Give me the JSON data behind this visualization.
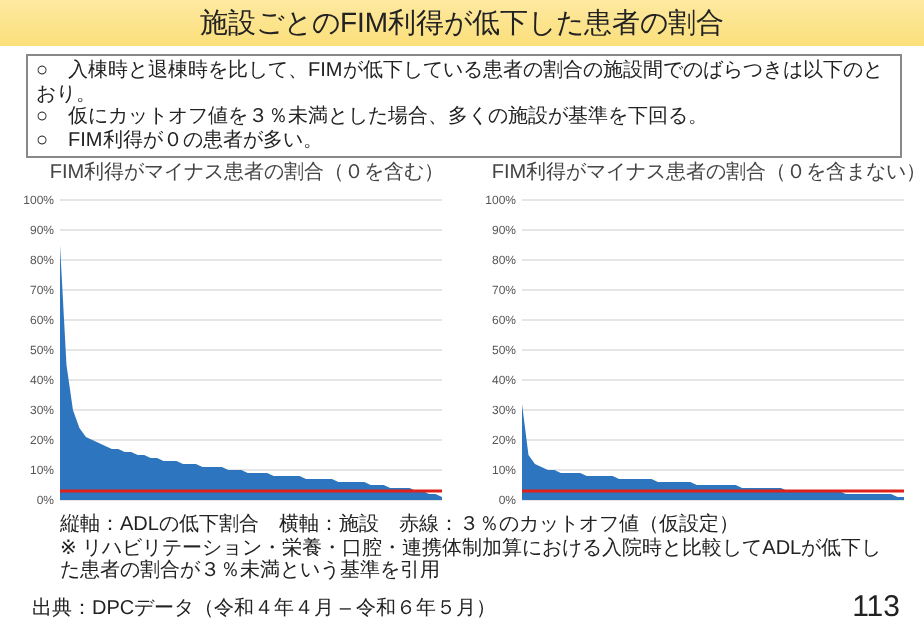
{
  "chart_data": [
    {
      "type": "other",
      "title": "施設ごとのFIM利得が低下した患者の割合",
      "annotations": [
        "○　入棟時と退棟時を比して、FIMが低下している患者の割合の施設間でのばらつきは以下のとおり。",
        "○　仮にカットオフ値を３％未満とした場合、多くの施設が基準を下回る。",
        "○　FIM利得が０の患者が多い。"
      ]
    },
    {
      "type": "area",
      "title": "FIM利得がマイナス患者の割合（０を含む）",
      "color": "#2e75c0",
      "grid": "y",
      "ylim": [
        0,
        100
      ],
      "yticks": [
        {
          "value": 0,
          "label": "0%"
        },
        {
          "value": 10,
          "label": "10%"
        },
        {
          "value": 20,
          "label": "20%"
        },
        {
          "value": 30,
          "label": "30%"
        },
        {
          "value": 40,
          "label": "40%"
        },
        {
          "value": 50,
          "label": "50%"
        },
        {
          "value": 60,
          "label": "60%"
        },
        {
          "value": 70,
          "label": "70%"
        },
        {
          "value": 80,
          "label": "80%"
        },
        {
          "value": 90,
          "label": "90%"
        },
        {
          "value": 100,
          "label": "100%"
        }
      ],
      "categories": [
        null,
        null,
        null,
        null,
        null,
        null,
        null,
        null,
        null,
        null,
        null,
        null,
        null,
        null,
        null,
        null,
        null,
        null,
        null,
        null,
        null,
        null,
        null,
        null,
        null,
        null,
        null,
        null,
        null,
        null,
        null,
        null,
        null,
        null,
        null,
        null,
        null,
        null,
        null,
        null,
        null,
        null,
        null,
        null,
        null,
        null,
        null,
        null,
        null,
        null,
        null,
        null,
        null,
        null,
        null,
        null,
        null,
        null,
        null,
        null
      ],
      "values": [
        85,
        45,
        30,
        24,
        21,
        20,
        19,
        18,
        17,
        17,
        16,
        16,
        15,
        15,
        14,
        14,
        13,
        13,
        13,
        12,
        12,
        12,
        11,
        11,
        11,
        11,
        10,
        10,
        10,
        9,
        9,
        9,
        9,
        8,
        8,
        8,
        8,
        8,
        7,
        7,
        7,
        7,
        7,
        6,
        6,
        6,
        6,
        6,
        5,
        5,
        5,
        4,
        4,
        4,
        4,
        3,
        3,
        2,
        2,
        1
      ],
      "ref_lines": [
        {
          "axis": "y",
          "value": 3,
          "color": "#e0201b"
        }
      ]
    },
    {
      "type": "area",
      "title": "FIM利得がマイナス患者の割合（０を含まない）",
      "color": "#2e75c0",
      "grid": "y",
      "ylim": [
        0,
        100
      ],
      "yticks": [
        {
          "value": 0,
          "label": "0%"
        },
        {
          "value": 10,
          "label": "10%"
        },
        {
          "value": 20,
          "label": "20%"
        },
        {
          "value": 30,
          "label": "30%"
        },
        {
          "value": 40,
          "label": "40%"
        },
        {
          "value": 50,
          "label": "50%"
        },
        {
          "value": 60,
          "label": "60%"
        },
        {
          "value": 70,
          "label": "70%"
        },
        {
          "value": 80,
          "label": "80%"
        },
        {
          "value": 90,
          "label": "90%"
        },
        {
          "value": 100,
          "label": "100%"
        }
      ],
      "categories": [
        null,
        null,
        null,
        null,
        null,
        null,
        null,
        null,
        null,
        null,
        null,
        null,
        null,
        null,
        null,
        null,
        null,
        null,
        null,
        null,
        null,
        null,
        null,
        null,
        null,
        null,
        null,
        null,
        null,
        null,
        null,
        null,
        null,
        null,
        null,
        null,
        null,
        null,
        null,
        null,
        null,
        null,
        null,
        null,
        null,
        null,
        null,
        null,
        null,
        null,
        null,
        null,
        null,
        null,
        null,
        null,
        null,
        null,
        null,
        null
      ],
      "values": [
        32,
        15,
        12,
        11,
        10,
        10,
        9,
        9,
        9,
        9,
        8,
        8,
        8,
        8,
        8,
        7,
        7,
        7,
        7,
        7,
        7,
        6,
        6,
        6,
        6,
        6,
        6,
        5,
        5,
        5,
        5,
        5,
        5,
        5,
        4,
        4,
        4,
        4,
        4,
        4,
        4,
        3,
        3,
        3,
        3,
        3,
        3,
        3,
        3,
        3,
        2,
        2,
        2,
        2,
        2,
        2,
        2,
        2,
        1,
        1
      ],
      "ref_lines": [
        {
          "axis": "y",
          "value": 3,
          "color": "#e0201b"
        }
      ]
    },
    {
      "type": "other",
      "annotations": [
        "縦軸：ADLの低下割合　横軸：施設　赤線：３％のカットオフ値（仮設定）",
        "※ リハビリテーション・栄養・口腔・連携体制加算における入院時と比較してADLが低下した患者の割合が３％未満という基準を引用",
        "出典：DPCデータ（令和４年４月 – 令和６年５月）",
        "113"
      ]
    }
  ]
}
